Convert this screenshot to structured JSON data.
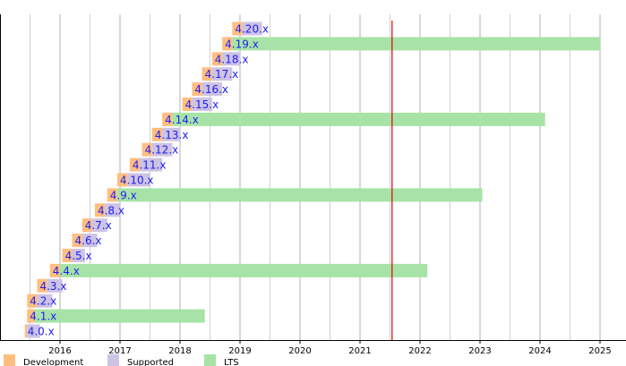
{
  "chart_data": {
    "type": "bar",
    "title": "",
    "xlabel": "",
    "ylabel": "",
    "x_ticks": [
      "2016",
      "2017",
      "2018",
      "2019",
      "2020",
      "2021",
      "2022",
      "2023",
      "2024",
      "2025"
    ],
    "xlim": [
      "2015-06-01",
      "2025-08-01"
    ],
    "today_marker": "2021-07-15",
    "grid": true,
    "legend": {
      "placement": "bottom-left",
      "entries": [
        {
          "key": "development",
          "label": "Development",
          "color": "#ffbe80"
        },
        {
          "key": "supported",
          "label": "Supported",
          "color": "#cdc3e4"
        },
        {
          "key": "lts",
          "label": "LTS",
          "color": "#a7e3a7"
        }
      ]
    },
    "colors": {
      "development": "#ffbe80",
      "supported": "#cdc3e4",
      "lts": "#a7e3a7",
      "today_line": "#dd0000",
      "grid": "#b0b0b0"
    },
    "versions": [
      {
        "label": "4.20.x",
        "dev_start": "2018-11-15",
        "support_start": "2019-01-15",
        "end": "2019-05-15",
        "lts": false
      },
      {
        "label": "4.19.x",
        "dev_start": "2018-09-15",
        "support_start": "2018-11-15",
        "end": "2025-01-01",
        "lts": true
      },
      {
        "label": "4.18.x",
        "dev_start": "2018-07-15",
        "support_start": "2018-09-15",
        "end": "2019-01-01",
        "lts": false
      },
      {
        "label": "4.17.x",
        "dev_start": "2018-05-15",
        "support_start": "2018-07-15",
        "end": "2018-11-15",
        "lts": false
      },
      {
        "label": "4.16.x",
        "dev_start": "2018-03-15",
        "support_start": "2018-05-15",
        "end": "2018-09-15",
        "lts": false
      },
      {
        "label": "4.15.x",
        "dev_start": "2018-01-15",
        "support_start": "2018-03-15",
        "end": "2018-07-15",
        "lts": false
      },
      {
        "label": "4.14.x",
        "dev_start": "2017-09-15",
        "support_start": "2017-11-15",
        "end": "2024-02-01",
        "lts": true
      },
      {
        "label": "4.13.x",
        "dev_start": "2017-07-15",
        "support_start": "2017-09-15",
        "end": "2018-01-01",
        "lts": false
      },
      {
        "label": "4.12.x",
        "dev_start": "2017-05-15",
        "support_start": "2017-07-15",
        "end": "2017-11-15",
        "lts": false
      },
      {
        "label": "4.11.x",
        "dev_start": "2017-03-01",
        "support_start": "2017-05-01",
        "end": "2017-09-15",
        "lts": false
      },
      {
        "label": "4.10.x",
        "dev_start": "2016-12-15",
        "support_start": "2017-02-15",
        "end": "2017-07-01",
        "lts": false
      },
      {
        "label": "4.9.x",
        "dev_start": "2016-10-15",
        "support_start": "2016-12-15",
        "end": "2023-01-15",
        "lts": true
      },
      {
        "label": "4.8.x",
        "dev_start": "2016-08-01",
        "support_start": "2016-10-01",
        "end": "2017-01-01",
        "lts": false
      },
      {
        "label": "4.7.x",
        "dev_start": "2016-05-15",
        "support_start": "2016-07-15",
        "end": "2016-10-15",
        "lts": false
      },
      {
        "label": "4.6.x",
        "dev_start": "2016-03-15",
        "support_start": "2016-05-15",
        "end": "2016-08-15",
        "lts": false
      },
      {
        "label": "4.5.x",
        "dev_start": "2016-01-15",
        "support_start": "2016-03-15",
        "end": "2016-06-01",
        "lts": false
      },
      {
        "label": "4.4.x",
        "dev_start": "2015-11-01",
        "support_start": "2016-01-01",
        "end": "2022-02-15",
        "lts": true
      },
      {
        "label": "4.3.x",
        "dev_start": "2015-08-15",
        "support_start": "2015-10-15",
        "end": "2016-01-15",
        "lts": false
      },
      {
        "label": "4.2.x",
        "dev_start": "2015-06-15",
        "support_start": "2015-08-15",
        "end": "2015-11-15",
        "lts": false
      },
      {
        "label": "4.1.x",
        "dev_start": "2015-06-15",
        "support_start": "2015-08-01",
        "end": "2018-06-01",
        "lts": true
      },
      {
        "label": "4.0.x",
        "dev_start": "2015-06-01",
        "support_start": "2015-06-15",
        "end": "2015-09-01",
        "lts": false
      }
    ]
  }
}
